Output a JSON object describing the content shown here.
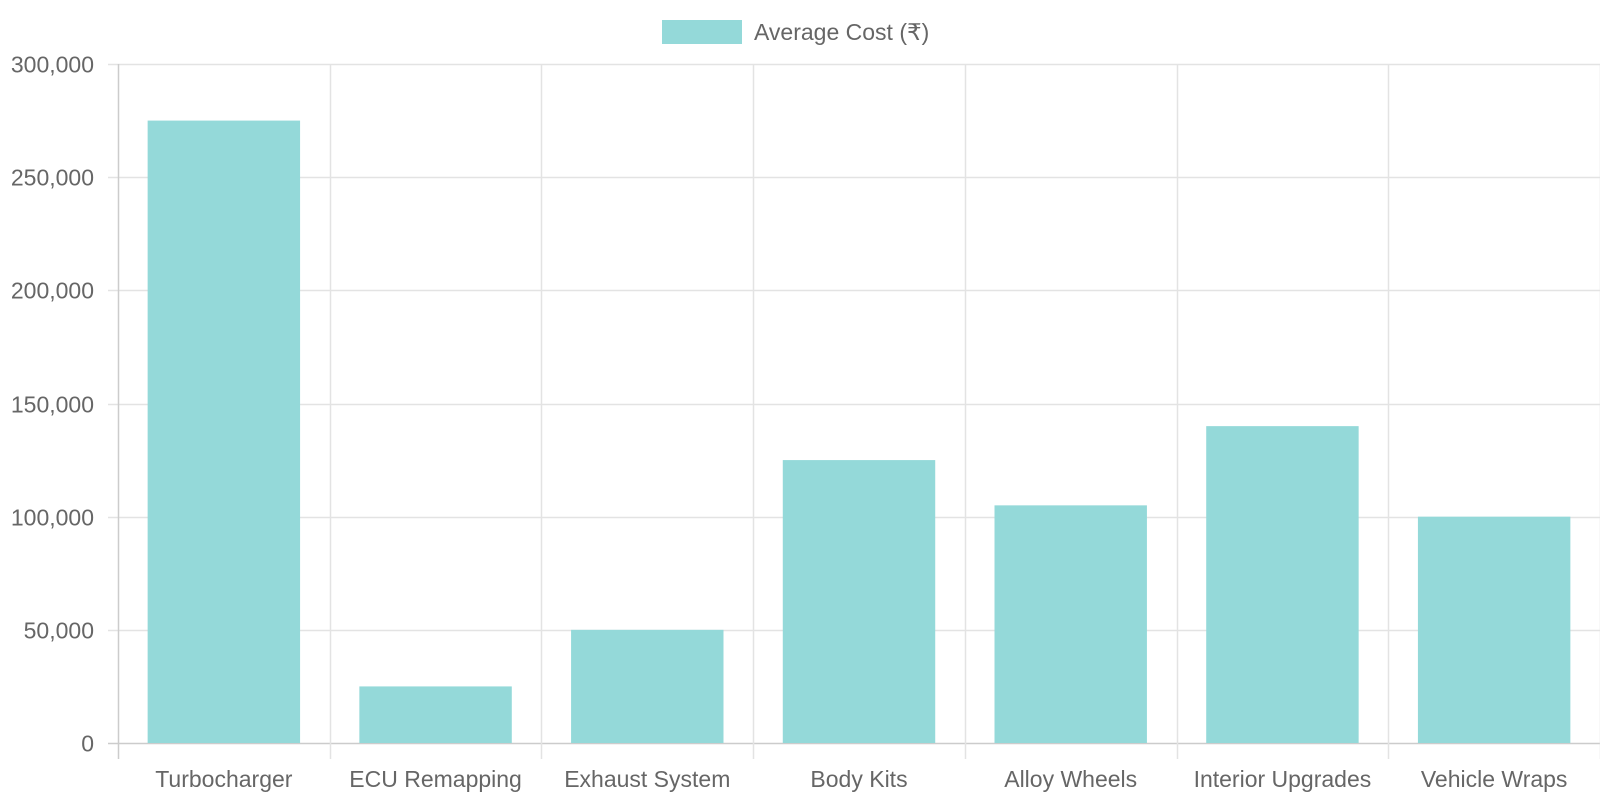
{
  "chart_data": {
    "type": "bar",
    "categories": [
      "Turbocharger",
      "ECU Remapping",
      "Exhaust System",
      "Body Kits",
      "Alloy Wheels",
      "Interior Upgrades",
      "Vehicle Wraps"
    ],
    "series": [
      {
        "name": "Average Cost (₹)",
        "values": [
          275000,
          25000,
          50000,
          125000,
          105000,
          140000,
          100000
        ],
        "color": "#94d9d9"
      }
    ],
    "ylim": [
      0,
      300000
    ],
    "yticks": [
      0,
      50000,
      100000,
      150000,
      200000,
      250000,
      300000
    ],
    "ytick_labels": [
      "0",
      "50,000",
      "100,000",
      "150,000",
      "200,000",
      "250,000",
      "300,000"
    ],
    "grid": true,
    "legend_position": "top-center"
  }
}
